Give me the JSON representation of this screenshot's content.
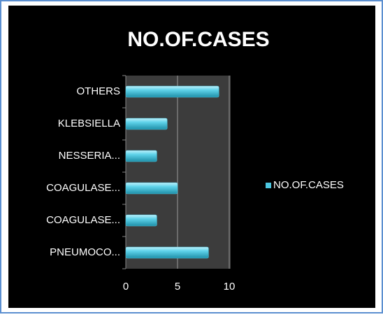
{
  "chart_data": {
    "type": "hbar",
    "title": "NO.OF.CASES",
    "categories": [
      "OTHERS",
      "KLEBSIELLA",
      "NESSERIA...",
      "COAGULASE...",
      "COAGULASE...",
      "PNEUMOCO..."
    ],
    "series": [
      {
        "name": "NO.OF.CASES",
        "color": "#4cc6e0",
        "values": [
          9,
          4,
          3,
          5,
          3,
          8
        ]
      }
    ],
    "xlim": [
      0,
      10
    ],
    "xticks": [
      0,
      5,
      10
    ],
    "grid": true,
    "legend": "right"
  }
}
